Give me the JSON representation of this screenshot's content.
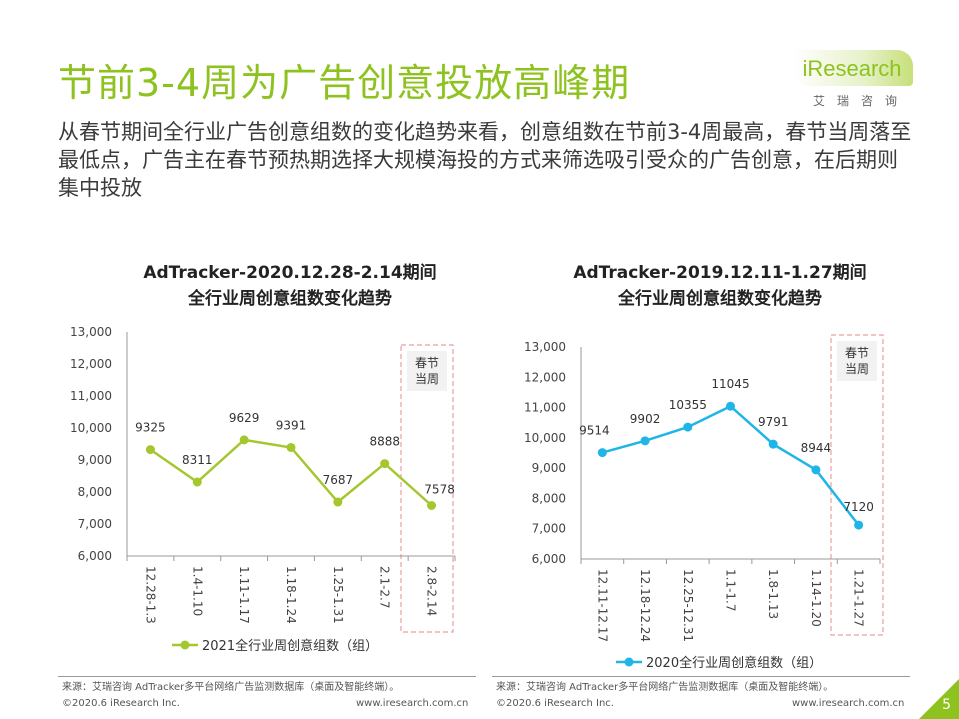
{
  "header": {
    "title": "节前3-4周为广告创意投放高峰期",
    "subtitle": "从春节期间全行业广告创意组数的变化趋势来看，创意组数在节前3-4周最高，春节当周落至最低点，广告主在春节预热期选择大规模海投的方式来筛选吸引受众的广告创意，在后期则集中投放"
  },
  "logo": {
    "brand": "iResearch",
    "sub": "艾瑞咨询"
  },
  "chart_data": [
    {
      "type": "line",
      "title": "AdTracker-2020.12.28-2.14期间\n全行业周创意组数变化趋势",
      "title_line1": "AdTracker-2020.12.28-2.14期间",
      "title_line2": "全行业周创意组数变化趋势",
      "categories": [
        "12.28-1.3",
        "1.4-1.10",
        "1.11-1.17",
        "1.18-1.24",
        "1.25-1.31",
        "2.1-2.7",
        "2.8-2.14"
      ],
      "series": [
        {
          "name": "2021全行业周创意组数（组）",
          "values": [
            9325,
            8311,
            9629,
            9391,
            7687,
            8888,
            7578
          ],
          "color": "#a3c72d"
        }
      ],
      "ylim": [
        6000,
        13000
      ],
      "yticks": [
        "6,000",
        "7,000",
        "8,000",
        "9,000",
        "10,000",
        "11,000",
        "12,000",
        "13,000"
      ],
      "highlight": {
        "label_line1": "春节",
        "label_line2": "当周",
        "category_index": 6
      },
      "legend": "bottom"
    },
    {
      "type": "line",
      "title": "AdTracker-2019.12.11-1.27期间\n全行业周创意组数变化趋势",
      "title_line1": "AdTracker-2019.12.11-1.27期间",
      "title_line2": "全行业周创意组数变化趋势",
      "categories": [
        "12.11-12.17",
        "12.18-12.24",
        "12.25-12.31",
        "1.1-1.7",
        "1.8-1.13",
        "1.14-1.20",
        "1.21-1.27"
      ],
      "series": [
        {
          "name": "2020全行业周创意组数（组）",
          "values": [
            9514,
            9902,
            10355,
            11045,
            9791,
            8944,
            7120
          ],
          "color": "#1fb5e6"
        }
      ],
      "ylim": [
        6000,
        13000
      ],
      "yticks": [
        "6,000",
        "7,000",
        "8,000",
        "9,000",
        "10,000",
        "11,000",
        "12,000",
        "13,000"
      ],
      "highlight": {
        "label_line1": "春节",
        "label_line2": "当周",
        "category_index": 6
      },
      "legend": "bottom"
    }
  ],
  "footer": {
    "source_left": "来源：艾瑞咨询 AdTracker多平台网络广告监测数据库（桌面及智能终端）。",
    "source_right": "来源：艾瑞咨询 AdTracker多平台网络广告监测数据库（桌面及智能终端）。",
    "copyright_left": "©2020.6 iResearch Inc.",
    "url_left": "www.iresearch.com.cn",
    "copyright_right": "©2020.6 iResearch Inc.",
    "url_right": "www.iresearch.com.cn",
    "page": "5"
  },
  "colors": {
    "brand": "#8dc21f",
    "highlight_border": "#e8a0a0",
    "highlight_fill": "#f2f2f2"
  }
}
